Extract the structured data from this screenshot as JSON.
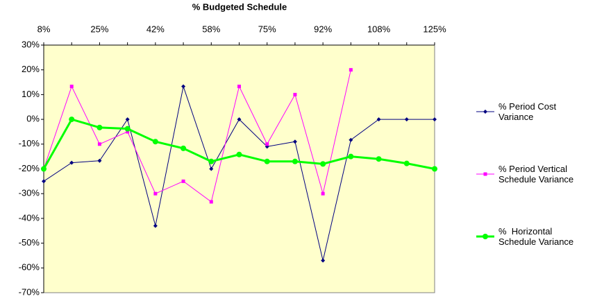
{
  "chart_data": {
    "type": "line",
    "title": "% Budgeted Schedule",
    "categories": [
      "8%",
      null,
      "25%",
      null,
      "42%",
      null,
      "58%",
      null,
      "75%",
      null,
      "92%",
      null,
      "108%",
      null,
      "125%"
    ],
    "series": [
      {
        "name": "% Period Cost Variance",
        "color": "#000080",
        "marker": "diamond",
        "values": [
          -25,
          -17.5,
          -16.7,
          0,
          -43,
          13.3,
          -20,
          0,
          -11,
          -9,
          -57,
          -8.3,
          0,
          0,
          0
        ]
      },
      {
        "name": "% Period Vertical Schedule Variance",
        "color": "#ff00ff",
        "marker": "square",
        "values": [
          -20,
          13.3,
          -10,
          -5,
          -30,
          -25,
          -33.3,
          13.3,
          -10,
          10,
          -30,
          20,
          null,
          null,
          null
        ]
      },
      {
        "name": "%  Horizontal Schedule Variance",
        "color": "#00ff00",
        "marker": "circle",
        "values": [
          -20,
          0,
          -3.3,
          -3.8,
          -9,
          -11.7,
          -17,
          -14.2,
          -17,
          -17,
          -18,
          -15,
          -16,
          -17.8,
          -20
        ]
      }
    ],
    "ylim": [
      -70,
      30
    ],
    "yticks": [
      {
        "value": 30,
        "label": "30%"
      },
      {
        "value": 20,
        "label": "20%"
      },
      {
        "value": 10,
        "label": "10%"
      },
      {
        "value": 0,
        "label": "0%"
      },
      {
        "value": -10,
        "label": "-10%"
      },
      {
        "value": -20,
        "label": "-20%"
      },
      {
        "value": -30,
        "label": "-30%"
      },
      {
        "value": -40,
        "label": "-40%"
      },
      {
        "value": -50,
        "label": "-50%"
      },
      {
        "value": -60,
        "label": "-60%"
      },
      {
        "value": -70,
        "label": "-70%"
      }
    ],
    "legend": "right"
  }
}
